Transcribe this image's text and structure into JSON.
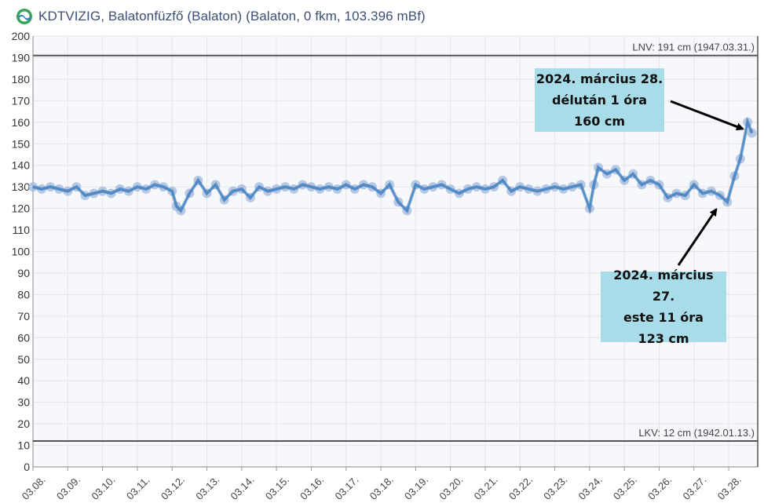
{
  "header": {
    "title": "KDTVIZIG, Balatonfüzfő (Balaton) (Balaton, 0 fkm, 103.396 mBf)",
    "logo_icon": "kdtvizig-logo-icon"
  },
  "chart_data": {
    "type": "line",
    "title": "",
    "xlabel": "",
    "ylabel": "",
    "ylim": [
      0,
      200
    ],
    "yticks": [
      0,
      10,
      20,
      30,
      40,
      50,
      60,
      70,
      80,
      90,
      100,
      110,
      120,
      130,
      140,
      150,
      160,
      170,
      180,
      190,
      200
    ],
    "xlim": [
      "2024-03-08T00:00",
      "2024-03-28T20:00"
    ],
    "x_tick_labels": [
      "03.08.",
      "03.09.",
      "03.10.",
      "03.11.",
      "03.12.",
      "03.13.",
      "03.14.",
      "03.15.",
      "03.16.",
      "03.17.",
      "03.18.",
      "03.19.",
      "03.20.",
      "03.21.",
      "03.22.",
      "03.23.",
      "03.24.",
      "03.25.",
      "03.26.",
      "03.27.",
      "03.28."
    ],
    "grid": true,
    "line_color": "#3f8ed3",
    "marker_color": "#9fb8dc",
    "reference_lines": [
      {
        "label": "LNV: 191 cm (1947.03.31.)",
        "value": 191
      },
      {
        "label": "LKV: 12 cm (1942.01.13.)",
        "value": 12
      }
    ],
    "series": [
      {
        "units": "cm",
        "points": [
          [
            "2024-03-08T00:00",
            130
          ],
          [
            "2024-03-08T06:00",
            129
          ],
          [
            "2024-03-08T12:00",
            130
          ],
          [
            "2024-03-08T18:00",
            129
          ],
          [
            "2024-03-09T00:00",
            128
          ],
          [
            "2024-03-09T06:00",
            130
          ],
          [
            "2024-03-09T12:00",
            126
          ],
          [
            "2024-03-09T18:00",
            127
          ],
          [
            "2024-03-10T00:00",
            128
          ],
          [
            "2024-03-10T06:00",
            127
          ],
          [
            "2024-03-10T12:00",
            129
          ],
          [
            "2024-03-10T18:00",
            128
          ],
          [
            "2024-03-11T00:00",
            130
          ],
          [
            "2024-03-11T06:00",
            129
          ],
          [
            "2024-03-11T12:00",
            131
          ],
          [
            "2024-03-11T18:00",
            130
          ],
          [
            "2024-03-12T00:00",
            128
          ],
          [
            "2024-03-12T03:00",
            121
          ],
          [
            "2024-03-12T06:00",
            119
          ],
          [
            "2024-03-12T12:00",
            127
          ],
          [
            "2024-03-12T18:00",
            133
          ],
          [
            "2024-03-13T00:00",
            127
          ],
          [
            "2024-03-13T06:00",
            131
          ],
          [
            "2024-03-13T12:00",
            124
          ],
          [
            "2024-03-13T18:00",
            128
          ],
          [
            "2024-03-14T00:00",
            129
          ],
          [
            "2024-03-14T06:00",
            125
          ],
          [
            "2024-03-14T12:00",
            130
          ],
          [
            "2024-03-14T18:00",
            128
          ],
          [
            "2024-03-15T00:00",
            129
          ],
          [
            "2024-03-15T06:00",
            130
          ],
          [
            "2024-03-15T12:00",
            129
          ],
          [
            "2024-03-15T18:00",
            131
          ],
          [
            "2024-03-16T00:00",
            130
          ],
          [
            "2024-03-16T06:00",
            129
          ],
          [
            "2024-03-16T12:00",
            130
          ],
          [
            "2024-03-16T18:00",
            129
          ],
          [
            "2024-03-17T00:00",
            131
          ],
          [
            "2024-03-17T06:00",
            129
          ],
          [
            "2024-03-17T12:00",
            131
          ],
          [
            "2024-03-17T18:00",
            130
          ],
          [
            "2024-03-18T00:00",
            127
          ],
          [
            "2024-03-18T06:00",
            131
          ],
          [
            "2024-03-18T12:00",
            123
          ],
          [
            "2024-03-18T18:00",
            119
          ],
          [
            "2024-03-19T00:00",
            131
          ],
          [
            "2024-03-19T06:00",
            129
          ],
          [
            "2024-03-19T12:00",
            130
          ],
          [
            "2024-03-19T18:00",
            131
          ],
          [
            "2024-03-20T00:00",
            129
          ],
          [
            "2024-03-20T06:00",
            127
          ],
          [
            "2024-03-20T12:00",
            129
          ],
          [
            "2024-03-20T18:00",
            130
          ],
          [
            "2024-03-21T00:00",
            129
          ],
          [
            "2024-03-21T06:00",
            130
          ],
          [
            "2024-03-21T12:00",
            133
          ],
          [
            "2024-03-21T18:00",
            128
          ],
          [
            "2024-03-22T00:00",
            130
          ],
          [
            "2024-03-22T06:00",
            129
          ],
          [
            "2024-03-22T12:00",
            128
          ],
          [
            "2024-03-22T18:00",
            129
          ],
          [
            "2024-03-23T00:00",
            130
          ],
          [
            "2024-03-23T06:00",
            129
          ],
          [
            "2024-03-23T12:00",
            130
          ],
          [
            "2024-03-23T18:00",
            131
          ],
          [
            "2024-03-24T00:00",
            120
          ],
          [
            "2024-03-24T03:00",
            131
          ],
          [
            "2024-03-24T06:00",
            139
          ],
          [
            "2024-03-24T12:00",
            136
          ],
          [
            "2024-03-24T18:00",
            138
          ],
          [
            "2024-03-25T00:00",
            133
          ],
          [
            "2024-03-25T06:00",
            136
          ],
          [
            "2024-03-25T12:00",
            131
          ],
          [
            "2024-03-25T18:00",
            133
          ],
          [
            "2024-03-26T00:00",
            131
          ],
          [
            "2024-03-26T06:00",
            125
          ],
          [
            "2024-03-26T12:00",
            127
          ],
          [
            "2024-03-26T18:00",
            126
          ],
          [
            "2024-03-27T00:00",
            131
          ],
          [
            "2024-03-27T06:00",
            127
          ],
          [
            "2024-03-27T12:00",
            128
          ],
          [
            "2024-03-27T18:00",
            126
          ],
          [
            "2024-03-27T23:00",
            123
          ],
          [
            "2024-03-28T04:00",
            135
          ],
          [
            "2024-03-28T08:00",
            143
          ],
          [
            "2024-03-28T13:00",
            160
          ],
          [
            "2024-03-28T16:00",
            155
          ]
        ]
      }
    ],
    "annotations": [
      {
        "lines": [
          "2024. március 28.",
          "délután 1 óra",
          "160 cm"
        ],
        "points_to": [
          "2024-03-28T13:00",
          158
        ]
      },
      {
        "lines": [
          "2024. március 27.",
          "este 11 óra",
          "123 cm"
        ],
        "points_to": [
          "2024-03-27T23:00",
          124
        ]
      }
    ]
  }
}
